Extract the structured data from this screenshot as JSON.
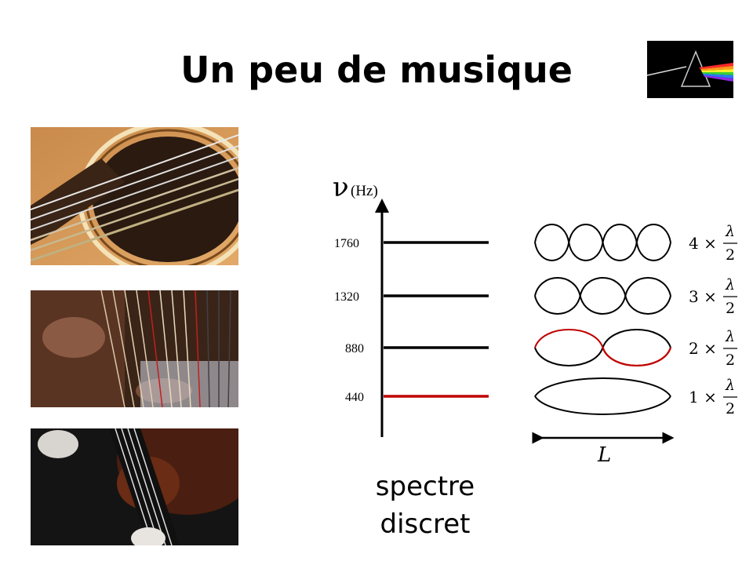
{
  "slide": {
    "title": "Un peu de musique",
    "caption_line1": "spectre",
    "caption_line2": "discret"
  },
  "axis": {
    "symbol": "ν",
    "unit": "(Hz)",
    "length_label": "L"
  },
  "chart_data": {
    "type": "diagram",
    "title": "Un peu de musique",
    "ylabel": "ν (Hz)",
    "levels": [
      {
        "frequency": 1760,
        "label": "1760",
        "harmonic": 4,
        "formula_prefix": "4 ×",
        "formula_num": "λ",
        "formula_den": "2",
        "highlight": false
      },
      {
        "frequency": 1320,
        "label": "1320",
        "harmonic": 3,
        "formula_prefix": "3 ×",
        "formula_num": "λ",
        "formula_den": "2",
        "highlight": false
      },
      {
        "frequency": 880,
        "label": "880",
        "harmonic": 2,
        "formula_prefix": "2 ×",
        "formula_num": "λ",
        "formula_den": "2",
        "highlight": false
      },
      {
        "frequency": 440,
        "label": "440",
        "harmonic": 1,
        "formula_prefix": "1 ×",
        "formula_num": "λ",
        "formula_den": "2",
        "highlight": true
      }
    ]
  },
  "colors": {
    "highlight": "#c00000",
    "line": "#000000",
    "background": "#ffffff"
  },
  "icons": {
    "prism": "prism-album-icon"
  }
}
